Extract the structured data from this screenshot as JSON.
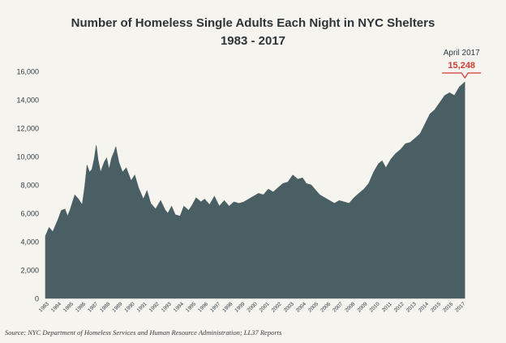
{
  "chart_data": {
    "type": "area",
    "title": "Number of Homeless Single Adults Each Night in NYC Shelters",
    "subtitle": "1983 - 2017",
    "xlabel": "",
    "ylabel": "",
    "ylim": [
      0,
      16000
    ],
    "y_ticks": [
      "0",
      "2,000",
      "4,000",
      "6,000",
      "8,000",
      "10,000",
      "12,000",
      "14,000",
      "16,000"
    ],
    "x_ticks": [
      "1983",
      "1984",
      "1985",
      "1986",
      "1987",
      "1988",
      "1989",
      "1990",
      "1991",
      "1992",
      "1993",
      "1994",
      "1995",
      "1996",
      "1997",
      "1998",
      "1999",
      "2000",
      "2001",
      "2002",
      "2003",
      "2004",
      "2005",
      "2006",
      "2007",
      "2008",
      "2009",
      "2010",
      "2011",
      "2012",
      "2013",
      "2014",
      "2015",
      "2016",
      "2017"
    ],
    "fill_color": "#4a5f63",
    "grid": false,
    "series": [
      {
        "points": [
          [
            1983.0,
            4400
          ],
          [
            1983.3,
            5000
          ],
          [
            1983.6,
            4700
          ],
          [
            1984.0,
            5500
          ],
          [
            1984.3,
            6200
          ],
          [
            1984.6,
            6300
          ],
          [
            1984.8,
            5800
          ],
          [
            1985.0,
            6200
          ],
          [
            1985.4,
            7300
          ],
          [
            1985.7,
            7000
          ],
          [
            1986.0,
            6600
          ],
          [
            1986.2,
            7800
          ],
          [
            1986.4,
            9400
          ],
          [
            1986.6,
            8900
          ],
          [
            1986.8,
            9100
          ],
          [
            1987.0,
            9900
          ],
          [
            1987.15,
            10800
          ],
          [
            1987.3,
            9800
          ],
          [
            1987.5,
            8900
          ],
          [
            1987.8,
            9600
          ],
          [
            1988.0,
            9900
          ],
          [
            1988.2,
            9100
          ],
          [
            1988.4,
            9900
          ],
          [
            1988.6,
            10300
          ],
          [
            1988.75,
            10700
          ],
          [
            1989.0,
            9600
          ],
          [
            1989.3,
            8900
          ],
          [
            1989.6,
            9200
          ],
          [
            1990.0,
            8300
          ],
          [
            1990.3,
            8700
          ],
          [
            1990.6,
            7800
          ],
          [
            1991.0,
            7000
          ],
          [
            1991.3,
            7600
          ],
          [
            1991.6,
            6700
          ],
          [
            1992.0,
            6300
          ],
          [
            1992.4,
            6900
          ],
          [
            1992.8,
            6200
          ],
          [
            1993.0,
            6000
          ],
          [
            1993.3,
            6500
          ],
          [
            1993.6,
            5900
          ],
          [
            1994.0,
            5800
          ],
          [
            1994.3,
            6500
          ],
          [
            1994.7,
            6200
          ],
          [
            1995.0,
            6600
          ],
          [
            1995.3,
            7100
          ],
          [
            1995.7,
            6800
          ],
          [
            1996.0,
            7000
          ],
          [
            1996.4,
            6600
          ],
          [
            1996.8,
            7200
          ],
          [
            1997.2,
            6500
          ],
          [
            1997.6,
            6900
          ],
          [
            1998.0,
            6500
          ],
          [
            1998.4,
            6800
          ],
          [
            1998.8,
            6700
          ],
          [
            1999.2,
            6800
          ],
          [
            1999.6,
            7000
          ],
          [
            2000.0,
            7200
          ],
          [
            2000.4,
            7400
          ],
          [
            2000.8,
            7300
          ],
          [
            2001.2,
            7700
          ],
          [
            2001.6,
            7500
          ],
          [
            2002.0,
            7800
          ],
          [
            2002.4,
            8100
          ],
          [
            2002.8,
            8200
          ],
          [
            2003.2,
            8700
          ],
          [
            2003.6,
            8400
          ],
          [
            2004.0,
            8500
          ],
          [
            2004.3,
            8100
          ],
          [
            2004.7,
            8000
          ],
          [
            2005.0,
            7700
          ],
          [
            2005.4,
            7300
          ],
          [
            2005.8,
            7100
          ],
          [
            2006.2,
            6900
          ],
          [
            2006.6,
            6700
          ],
          [
            2007.0,
            6900
          ],
          [
            2007.4,
            6800
          ],
          [
            2007.8,
            6700
          ],
          [
            2008.2,
            7100
          ],
          [
            2008.6,
            7400
          ],
          [
            2009.0,
            7700
          ],
          [
            2009.4,
            8100
          ],
          [
            2009.8,
            8900
          ],
          [
            2010.2,
            9500
          ],
          [
            2010.5,
            9700
          ],
          [
            2010.8,
            9200
          ],
          [
            2011.2,
            9800
          ],
          [
            2011.6,
            10200
          ],
          [
            2012.0,
            10500
          ],
          [
            2012.4,
            10900
          ],
          [
            2012.8,
            11000
          ],
          [
            2013.2,
            11300
          ],
          [
            2013.6,
            11600
          ],
          [
            2014.0,
            12300
          ],
          [
            2014.4,
            13000
          ],
          [
            2014.8,
            13300
          ],
          [
            2015.2,
            13800
          ],
          [
            2015.6,
            14300
          ],
          [
            2016.0,
            14500
          ],
          [
            2016.4,
            14300
          ],
          [
            2016.8,
            14900
          ],
          [
            2017.25,
            15248
          ]
        ]
      }
    ],
    "annotation": {
      "label": "April 2017",
      "value": "15,248",
      "x": 2017.25,
      "y": 15248,
      "color": "#d23a34"
    }
  },
  "source": "Source:  NYC Department of Homeless Services and Human Resource Administration; LL37 Reports"
}
